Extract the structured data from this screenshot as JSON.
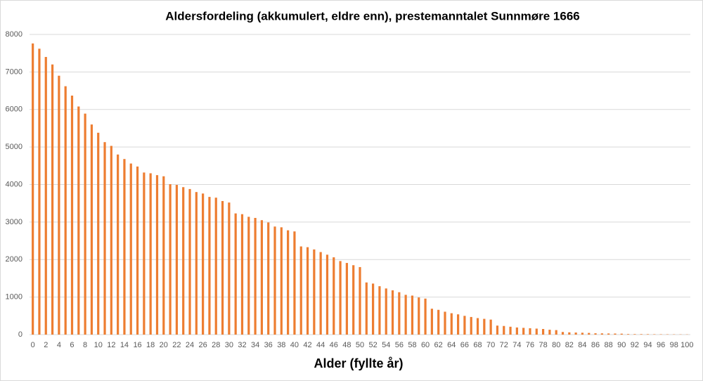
{
  "chart_data": {
    "type": "bar",
    "title": "Aldersfordeling (akkumulert, eldre enn), prestemanntalet Sunnmøre 1666",
    "x_label": "Alder (fyllte år)",
    "categories": [
      "0",
      null,
      "2",
      null,
      "4",
      null,
      "6",
      null,
      "8",
      null,
      "10",
      null,
      "12",
      null,
      "14",
      null,
      "16",
      null,
      "18",
      null,
      "20",
      null,
      "22",
      null,
      "24",
      null,
      "26",
      null,
      "28",
      null,
      "30",
      null,
      "32",
      null,
      "34",
      null,
      "36",
      null,
      "38",
      null,
      "40",
      null,
      "42",
      null,
      "44",
      null,
      "46",
      null,
      "48",
      null,
      "50",
      null,
      "52",
      null,
      "54",
      null,
      "56",
      null,
      "58",
      null,
      "60",
      null,
      "62",
      null,
      "64",
      null,
      "66",
      null,
      "68",
      null,
      "70",
      null,
      "72",
      null,
      "74",
      null,
      "76",
      null,
      "78",
      null,
      "80",
      null,
      "82",
      null,
      "84",
      null,
      "86",
      null,
      "88",
      null,
      "90",
      null,
      "92",
      null,
      "94",
      null,
      "96",
      null,
      "98",
      null,
      "100"
    ],
    "values": [
      7760,
      7620,
      7400,
      7200,
      6900,
      6620,
      6370,
      6080,
      5890,
      5600,
      5380,
      5130,
      5030,
      4800,
      4680,
      4560,
      4480,
      4320,
      4300,
      4250,
      4220,
      4010,
      3990,
      3930,
      3880,
      3800,
      3760,
      3670,
      3650,
      3560,
      3520,
      3230,
      3210,
      3140,
      3110,
      3050,
      2990,
      2880,
      2860,
      2780,
      2750,
      2350,
      2330,
      2270,
      2200,
      2130,
      2060,
      1960,
      1910,
      1850,
      1800,
      1390,
      1360,
      1290,
      1230,
      1180,
      1130,
      1060,
      1040,
      990,
      960,
      690,
      660,
      610,
      570,
      540,
      500,
      470,
      440,
      420,
      400,
      240,
      230,
      210,
      190,
      180,
      170,
      160,
      150,
      130,
      120,
      70,
      60,
      55,
      50,
      45,
      35,
      33,
      30,
      28,
      25,
      15,
      14,
      13,
      12,
      10,
      9,
      8,
      7,
      6,
      5
    ],
    "color": "#ed7d31",
    "ylim": [
      0,
      8000
    ],
    "yticks": [
      0,
      1000,
      2000,
      3000,
      4000,
      5000,
      6000,
      7000,
      8000
    ],
    "grid": true
  }
}
